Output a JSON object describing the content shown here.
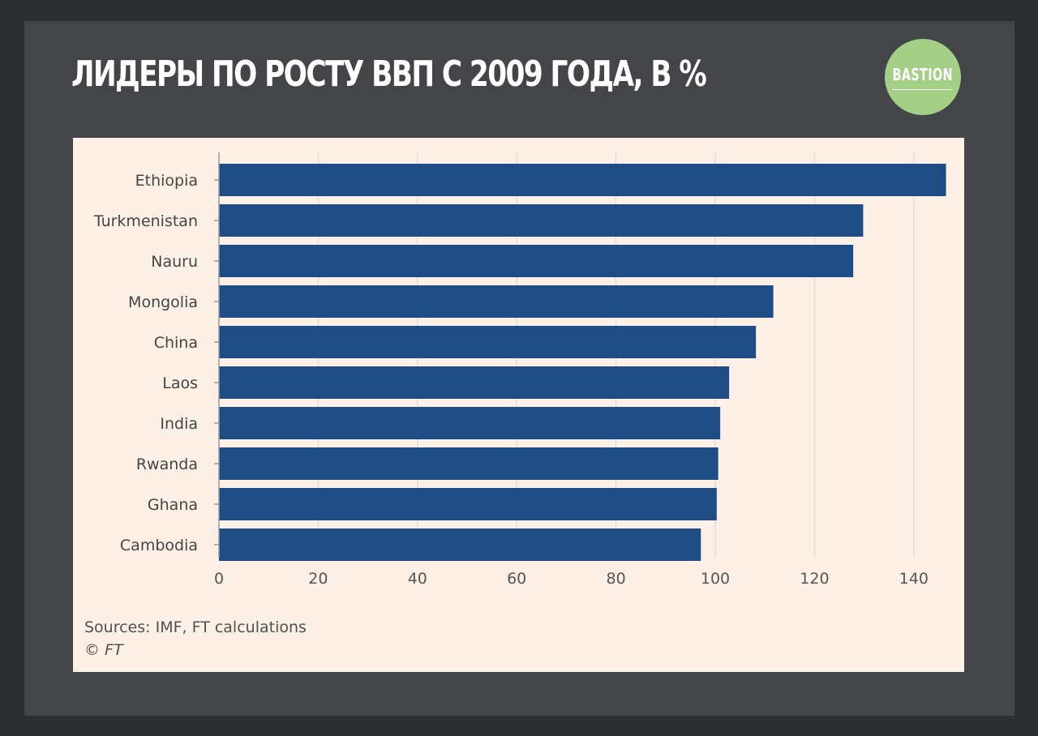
{
  "header": {
    "title": "ЛИДЕРЫ ПО РОСТУ ВВП С 2009 ГОДА, В %",
    "logo_text": "BASTION"
  },
  "footer": {
    "source": "Sources: IMF, FT calculations",
    "copyright": "© FT"
  },
  "colors": {
    "bar": "#1e4d86",
    "panel_background": "#fdf1e7",
    "frame": "#434548",
    "logo": "#a3cf87"
  },
  "chart_data": {
    "type": "bar",
    "orientation": "horizontal",
    "title": "ЛИДЕРЫ ПО РОСТУ ВВП С 2009 ГОДА, В %",
    "categories": [
      "Ethiopia",
      "Turkmenistan",
      "Nauru",
      "Mongolia",
      "China",
      "Laos",
      "India",
      "Rwanda",
      "Ghana",
      "Cambodia"
    ],
    "values": [
      146.5,
      129.8,
      127.8,
      111.7,
      108.2,
      102.8,
      101.0,
      100.6,
      100.3,
      97.1
    ],
    "xlim": [
      0,
      147
    ],
    "xticks": [
      0,
      20,
      40,
      60,
      80,
      100,
      120,
      140
    ],
    "xtick_labels": [
      "0",
      "20",
      "40",
      "60",
      "80",
      "100",
      "120",
      "140"
    ],
    "xlabel": "",
    "ylabel": "",
    "grid": "vertical",
    "legend": "none"
  }
}
